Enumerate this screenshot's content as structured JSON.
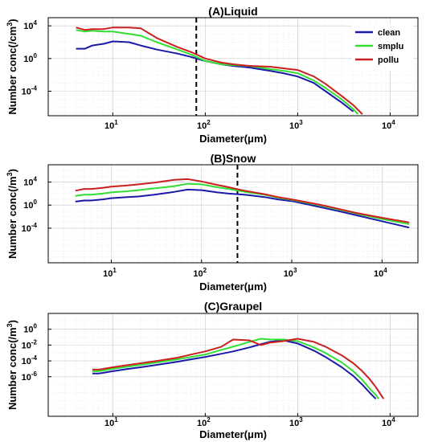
{
  "colors": {
    "clean": "#1a1aa8",
    "smplu": "#33dd33",
    "pollu": "#cc1f1f"
  },
  "chart_data": [
    {
      "type": "line",
      "title": "(A)Liquid",
      "xlabel": "Diameter(μm)",
      "ylabel": "Number conc(/cm",
      "ylabel_sup": "3",
      "ylabel_end": ")",
      "x_scale": "log",
      "y_scale": "log",
      "xlim": [
        2,
        20000
      ],
      "ylim_exp": [
        -7,
        5
      ],
      "xticks": [
        {
          "base": "10",
          "exp": "1"
        },
        {
          "base": "10",
          "exp": "2"
        },
        {
          "base": "10",
          "exp": "3"
        },
        {
          "base": "10",
          "exp": "4"
        }
      ],
      "xtick_values": [
        10,
        100,
        1000,
        10000
      ],
      "yticks": [
        {
          "base": "10",
          "exp": "4"
        },
        {
          "base": "10",
          "exp": "0"
        },
        {
          "base": "10",
          "exp": "-4"
        }
      ],
      "ytick_exps": [
        4,
        0,
        -4
      ],
      "vline_x": 80,
      "legend": {
        "position": "top-right",
        "entries": [
          "clean",
          "smplu",
          "pollu"
        ]
      },
      "series": [
        {
          "name": "clean",
          "x": [
            4,
            5,
            6,
            8,
            10,
            15,
            20,
            30,
            50,
            70,
            100,
            150,
            200,
            300,
            500,
            700,
            1000,
            1500,
            2000,
            3000,
            4000
          ],
          "logy": [
            1.2,
            1.2,
            1.6,
            1.8,
            2.1,
            2.0,
            1.6,
            1.1,
            0.6,
            0.2,
            -0.3,
            -0.7,
            -0.9,
            -1.1,
            -1.5,
            -1.8,
            -2.2,
            -3.0,
            -4.0,
            -5.4,
            -6.5
          ]
        },
        {
          "name": "smplu",
          "x": [
            4,
            5,
            6,
            8,
            10,
            15,
            20,
            30,
            50,
            70,
            100,
            150,
            200,
            300,
            500,
            700,
            1000,
            1500,
            2000,
            3000,
            4000,
            4500
          ],
          "logy": [
            3.5,
            3.3,
            3.4,
            3.3,
            3.3,
            3.0,
            2.8,
            2.0,
            1.1,
            0.5,
            -0.3,
            -0.7,
            -0.8,
            -0.9,
            -1.3,
            -1.5,
            -1.8,
            -2.7,
            -3.6,
            -5.0,
            -6.2,
            -6.8
          ]
        },
        {
          "name": "pollu",
          "x": [
            4,
            5,
            6,
            8,
            10,
            15,
            20,
            30,
            50,
            70,
            100,
            150,
            200,
            300,
            500,
            700,
            1000,
            1500,
            2000,
            3000,
            4000,
            5000
          ],
          "logy": [
            3.8,
            3.5,
            3.6,
            3.6,
            3.8,
            3.8,
            3.7,
            2.5,
            1.4,
            0.8,
            0.0,
            -0.5,
            -0.7,
            -0.9,
            -1.0,
            -1.2,
            -1.4,
            -2.2,
            -3.1,
            -4.6,
            -5.7,
            -6.8
          ]
        }
      ]
    },
    {
      "type": "line",
      "title": "(B)Snow",
      "xlabel": "Diameter(μm)",
      "ylabel": "Number conc(/m",
      "ylabel_sup": "3",
      "ylabel_end": ")",
      "x_scale": "log",
      "y_scale": "log",
      "xlim": [
        2,
        25000
      ],
      "ylim_exp": [
        -10,
        7
      ],
      "xticks": [
        {
          "base": "10",
          "exp": "1"
        },
        {
          "base": "10",
          "exp": "2"
        },
        {
          "base": "10",
          "exp": "3"
        },
        {
          "base": "10",
          "exp": "4"
        }
      ],
      "xtick_values": [
        10,
        100,
        1000,
        10000
      ],
      "yticks": [
        {
          "base": "10",
          "exp": "4"
        },
        {
          "base": "10",
          "exp": "0"
        },
        {
          "base": "10",
          "exp": "-4"
        }
      ],
      "ytick_exps": [
        4,
        0,
        -4
      ],
      "vline_x": 250,
      "series": [
        {
          "name": "clean",
          "x": [
            4,
            5,
            6,
            8,
            10,
            15,
            20,
            30,
            50,
            70,
            100,
            150,
            200,
            300,
            500,
            700,
            1000,
            2000,
            3000,
            5000,
            10000,
            20000
          ],
          "logy": [
            0.6,
            0.8,
            0.8,
            1.0,
            1.2,
            1.4,
            1.5,
            1.8,
            2.3,
            2.7,
            2.6,
            2.2,
            2.0,
            1.8,
            1.4,
            1.0,
            0.7,
            -0.3,
            -0.9,
            -1.7,
            -2.8,
            -3.9
          ]
        },
        {
          "name": "smplu",
          "x": [
            4,
            5,
            6,
            8,
            10,
            15,
            20,
            30,
            50,
            70,
            100,
            150,
            200,
            300,
            500,
            700,
            1000,
            2000,
            3000,
            5000,
            10000,
            20000
          ],
          "logy": [
            1.6,
            1.8,
            1.8,
            2.0,
            2.2,
            2.4,
            2.6,
            2.9,
            3.3,
            3.7,
            3.6,
            3.1,
            2.8,
            2.3,
            1.8,
            1.3,
            0.9,
            0.0,
            -0.6,
            -1.4,
            -2.4,
            -3.3
          ]
        },
        {
          "name": "pollu",
          "x": [
            4,
            5,
            6,
            8,
            10,
            15,
            20,
            30,
            50,
            70,
            100,
            150,
            200,
            300,
            500,
            700,
            1000,
            2000,
            3000,
            5000,
            10000,
            20000
          ],
          "logy": [
            2.5,
            2.8,
            2.8,
            3.0,
            3.2,
            3.4,
            3.6,
            3.9,
            4.4,
            4.5,
            4.1,
            3.5,
            3.1,
            2.5,
            1.9,
            1.4,
            1.0,
            0.1,
            -0.5,
            -1.3,
            -2.2,
            -3.0
          ]
        }
      ]
    },
    {
      "type": "line",
      "title": "(C)Graupel",
      "xlabel": "Diameter(μm)",
      "ylabel": "Number conc(/m",
      "ylabel_sup": "3",
      "ylabel_end": ")",
      "x_scale": "log",
      "y_scale": "log",
      "xlim": [
        2,
        20000
      ],
      "ylim_exp": [
        -11,
        2
      ],
      "xticks": [
        {
          "base": "10",
          "exp": "1"
        },
        {
          "base": "10",
          "exp": "2"
        },
        {
          "base": "10",
          "exp": "3"
        },
        {
          "base": "10",
          "exp": "4"
        }
      ],
      "xtick_values": [
        10,
        100,
        1000,
        10000
      ],
      "yticks": [
        {
          "base": "10",
          "exp": "0"
        },
        {
          "base": "10",
          "exp": "-2"
        },
        {
          "base": "10",
          "exp": "-4"
        },
        {
          "base": "10",
          "exp": "-6"
        }
      ],
      "ytick_exps": [
        0,
        -2,
        -4,
        -6
      ],
      "series": [
        {
          "name": "clean",
          "x": [
            6,
            7,
            8,
            10,
            15,
            20,
            30,
            50,
            70,
            100,
            150,
            200,
            300,
            400,
            500,
            700,
            1000,
            1500,
            2000,
            3000,
            4000,
            5000,
            6000,
            7000
          ],
          "logy": [
            -5.6,
            -5.6,
            -5.5,
            -5.3,
            -5.0,
            -4.8,
            -4.5,
            -4.1,
            -3.8,
            -3.5,
            -3.1,
            -2.8,
            -2.3,
            -1.9,
            -1.6,
            -1.4,
            -1.8,
            -2.7,
            -3.5,
            -4.8,
            -5.9,
            -7.0,
            -8.0,
            -8.8
          ]
        },
        {
          "name": "smplu",
          "x": [
            6,
            7,
            8,
            10,
            15,
            20,
            30,
            50,
            70,
            100,
            150,
            200,
            300,
            400,
            500,
            700,
            1000,
            1500,
            2000,
            3000,
            4000,
            5000,
            6000,
            7000,
            7500
          ],
          "logy": [
            -5.3,
            -5.3,
            -5.2,
            -5.0,
            -4.7,
            -4.5,
            -4.2,
            -3.8,
            -3.5,
            -3.2,
            -2.6,
            -2.2,
            -1.6,
            -1.2,
            -1.3,
            -1.3,
            -1.5,
            -2.3,
            -3.0,
            -4.2,
            -5.3,
            -6.4,
            -7.5,
            -8.3,
            -8.8
          ]
        },
        {
          "name": "pollu",
          "x": [
            6,
            7,
            8,
            10,
            15,
            20,
            30,
            50,
            70,
            100,
            150,
            200,
            300,
            400,
            500,
            700,
            1000,
            1500,
            2000,
            3000,
            4000,
            5000,
            6000,
            7000,
            8500
          ],
          "logy": [
            -5.1,
            -5.1,
            -5.0,
            -4.8,
            -4.5,
            -4.3,
            -4.0,
            -3.6,
            -3.2,
            -2.8,
            -2.2,
            -1.3,
            -1.4,
            -2.0,
            -1.7,
            -1.5,
            -1.2,
            -1.6,
            -2.2,
            -3.3,
            -4.3,
            -5.3,
            -6.3,
            -7.3,
            -8.8
          ]
        }
      ]
    }
  ]
}
